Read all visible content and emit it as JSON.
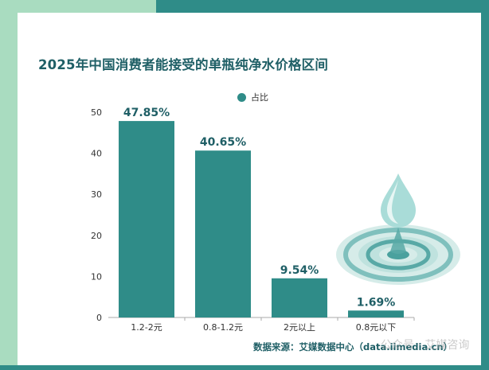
{
  "colors": {
    "bar": "#2f8c88",
    "title": "#1f5f66",
    "frame_light": "#a9dcc0",
    "frame_dark": "#2f8c88"
  },
  "title": "2025年中国消费者能接受的单瓶纯净水价格区间",
  "legend": {
    "label": "占比"
  },
  "source": "数据来源：艾媒数据中心（data.iimedia.cn）",
  "watermark": "公众号 · 艾媒咨询",
  "decoration": {
    "icon": "water-drop-ripple-icon"
  },
  "chart_data": {
    "type": "bar",
    "categories": [
      "1.2-2元",
      "0.8-1.2元",
      "2元以上",
      "0.8元以下"
    ],
    "series": [
      {
        "name": "占比",
        "values": [
          47.85,
          40.65,
          9.54,
          1.69
        ]
      }
    ],
    "data_labels": [
      "47.85%",
      "40.65%",
      "9.54%",
      "1.69%"
    ],
    "ylim": [
      0,
      50
    ],
    "yticks": [
      0,
      10,
      20,
      30,
      40,
      50
    ],
    "xlabel": "",
    "ylabel": "",
    "grid": false,
    "legend_position": "top"
  }
}
